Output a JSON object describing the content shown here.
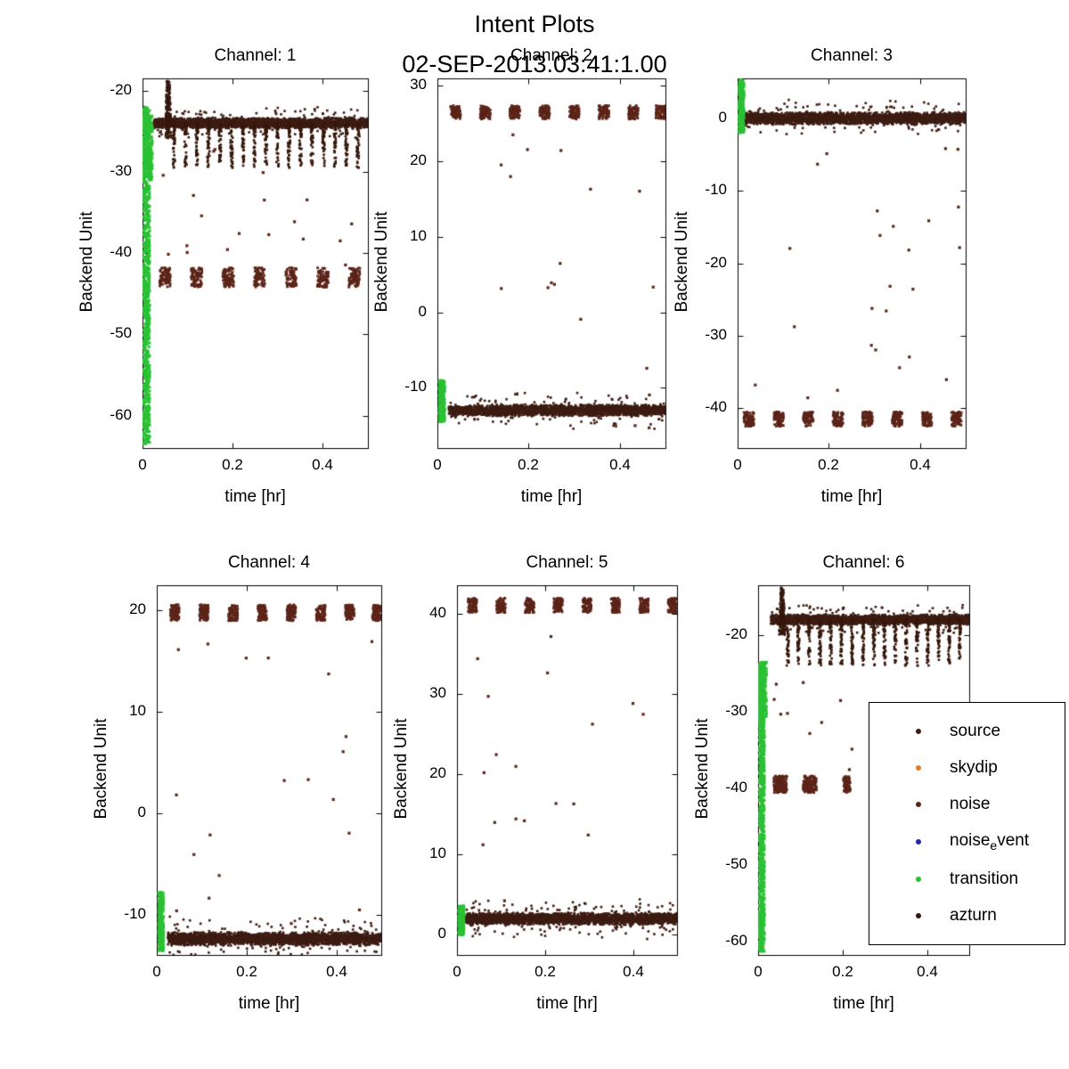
{
  "chart_data": {
    "type": "scatter",
    "title": "Intent Plots",
    "subtitle": "02-SEP-2013.03:41:1.00",
    "xlabel": "time [hr]",
    "ylabel": "Backend Unit",
    "xlim": [
      0,
      0.5
    ],
    "xticks": [
      0,
      0.2,
      0.4
    ],
    "xtick_labels": [
      "0",
      "0.2",
      "0.4"
    ],
    "grid": false,
    "legend": {
      "position": "lower-right, overlapping Channel 6",
      "entries": [
        {
          "label": "source",
          "color": "#3d1c12"
        },
        {
          "label": "skydip",
          "color": "#e07b26"
        },
        {
          "label": "noise",
          "color": "#5c2418"
        },
        {
          "label": "noise_event",
          "display": {
            "pre": "noise",
            "sub": "e",
            "post": "vent"
          },
          "color": "#2424b0"
        },
        {
          "label": "transition",
          "color": "#2bc135"
        },
        {
          "label": "azturn",
          "color": "#35170b"
        }
      ]
    },
    "subplots": [
      {
        "title": "Channel: 1",
        "ylim": [
          -64,
          -18.5
        ],
        "yticks": [
          -20,
          -30,
          -40,
          -50,
          -60
        ],
        "series": {
          "band": {
            "color_key": "source",
            "y": -24,
            "spread": 0.7,
            "x0": 0.025,
            "x1": 0.5,
            "n": 2600
          },
          "dips": {
            "color_key": "azturn",
            "to": -29.5,
            "start": 0.07,
            "step": 0.0255,
            "count": 17,
            "n": 42
          },
          "spike": {
            "color_key": "azturn",
            "x": 0.057,
            "halfwidth": 0.007,
            "y0": -26,
            "y1": -18.8,
            "n": 160
          },
          "clusters": {
            "color_key": "noise",
            "y": -43,
            "spread": 1.2,
            "halfwidth": 0.012,
            "n": 80,
            "positions": [
              0.05,
              0.12,
              0.19,
              0.26,
              0.33,
              0.4,
              0.47
            ]
          },
          "sparse": {
            "color_key": "noise",
            "n": 20,
            "x0": 0.03,
            "x1": 0.49,
            "y0": -42,
            "y1": -27
          },
          "transition": {
            "color_key": "transition",
            "x0": 0.002,
            "x1": 0.016,
            "y0": -63.5,
            "y1": -22,
            "n": 850,
            "blob": {
              "x0": 0.0,
              "x1": 0.022,
              "y0": -31,
              "y1": -23,
              "n": 260
            }
          }
        }
      },
      {
        "title": "Channel: 2",
        "ylim": [
          -18,
          31
        ],
        "yticks": [
          30,
          20,
          10,
          0,
          -10
        ],
        "series": {
          "band": {
            "color_key": "source",
            "y": -13,
            "spread": 0.8,
            "x0": 0.025,
            "x1": 0.5,
            "n": 2600
          },
          "clusters": {
            "color_key": "noise",
            "y": 26.5,
            "spread": 0.9,
            "halfwidth": 0.011,
            "n": 80,
            "positions": [
              0.04,
              0.105,
              0.17,
              0.235,
              0.3,
              0.365,
              0.43,
              0.49
            ]
          },
          "sparse": {
            "color_key": "noise",
            "n": 24,
            "x0": 0.02,
            "x1": 0.49,
            "y0": -17,
            "y1": 25
          },
          "transition": {
            "color_key": "transition",
            "x0": 0.004,
            "x1": 0.016,
            "y0": -14.5,
            "y1": -9,
            "n": 350
          }
        }
      },
      {
        "title": "Channel: 3",
        "ylim": [
          -45.5,
          5.5
        ],
        "yticks": [
          0,
          -10,
          -20,
          -30,
          -40
        ],
        "series": {
          "band": {
            "color_key": "source",
            "y": 0,
            "spread": 0.9,
            "x0": 0.015,
            "x1": 0.5,
            "n": 2600
          },
          "clusters": {
            "color_key": "noise",
            "y": -41.5,
            "spread": 1.0,
            "halfwidth": 0.011,
            "n": 80,
            "positions": [
              0.025,
              0.09,
              0.155,
              0.22,
              0.285,
              0.35,
              0.415,
              0.48
            ]
          },
          "sparse": {
            "color_key": "noise",
            "n": 25,
            "x0": 0.02,
            "x1": 0.49,
            "y0": -40,
            "y1": -3
          },
          "transition": {
            "color_key": "transition",
            "x0": 0.003,
            "x1": 0.014,
            "y0": -2,
            "y1": 5.3,
            "n": 350
          }
        }
      },
      {
        "title": "Channel: 4",
        "ylim": [
          -14,
          22.5
        ],
        "yticks": [
          20,
          10,
          0,
          -10
        ],
        "series": {
          "band": {
            "color_key": "source",
            "y": -12.4,
            "spread": 0.7,
            "x0": 0.025,
            "x1": 0.5,
            "n": 2600
          },
          "clusters": {
            "color_key": "noise",
            "y": 19.8,
            "spread": 0.8,
            "halfwidth": 0.01,
            "n": 80,
            "positions": [
              0.04,
              0.105,
              0.17,
              0.235,
              0.3,
              0.365,
              0.43,
              0.49
            ]
          },
          "sparse": {
            "color_key": "noise",
            "n": 20,
            "x0": 0.02,
            "x1": 0.49,
            "y0": -11,
            "y1": 18
          },
          "transition": {
            "color_key": "transition",
            "x0": 0.004,
            "x1": 0.015,
            "y0": -13.6,
            "y1": -7.8,
            "n": 350
          }
        }
      },
      {
        "title": "Channel: 5",
        "ylim": [
          -2.5,
          43.5
        ],
        "yticks": [
          40,
          30,
          20,
          10,
          0
        ],
        "series": {
          "band": {
            "color_key": "source",
            "y": 2,
            "spread": 0.8,
            "x0": 0.02,
            "x1": 0.5,
            "n": 2600
          },
          "clusters": {
            "color_key": "noise",
            "y": 41,
            "spread": 0.9,
            "halfwidth": 0.01,
            "n": 80,
            "positions": [
              0.035,
              0.1,
              0.165,
              0.23,
              0.295,
              0.36,
              0.425,
              0.49
            ]
          },
          "sparse": {
            "color_key": "noise",
            "n": 18,
            "x0": 0.02,
            "x1": 0.49,
            "y0": 4,
            "y1": 39
          },
          "transition": {
            "color_key": "transition",
            "x0": 0.004,
            "x1": 0.016,
            "y0": 0,
            "y1": 3.6,
            "n": 350
          }
        }
      },
      {
        "title": "Channel: 6",
        "ylim": [
          -61.8,
          -13.5
        ],
        "yticks": [
          -20,
          -30,
          -40,
          -50,
          -60
        ],
        "series": {
          "band": {
            "color_key": "source",
            "y": -18,
            "spread": 0.7,
            "x0": 0.03,
            "x1": 0.5,
            "n": 2600
          },
          "dips": {
            "color_key": "azturn",
            "to": -24,
            "start": 0.07,
            "step": 0.0255,
            "count": 17,
            "n": 42
          },
          "spike": {
            "color_key": "azturn",
            "x": 0.057,
            "halfwidth": 0.007,
            "y0": -20,
            "y1": -13.8,
            "n": 160
          },
          "clusters": {
            "color_key": "noise",
            "y": -39.5,
            "spread": 1.1,
            "halfwidth": 0.008,
            "n": 70,
            "positions": [
              0.045,
              0.06,
              0.115,
              0.13,
              0.21
            ]
          },
          "sparse": {
            "color_key": "noise",
            "n": 10,
            "x0": 0.035,
            "x1": 0.23,
            "y0": -38,
            "y1": -26
          },
          "transition": {
            "color_key": "transition",
            "x0": 0.002,
            "x1": 0.015,
            "y0": -61.5,
            "y1": -24,
            "n": 850,
            "blob": {
              "x0": 0.0,
              "x1": 0.02,
              "y0": -31,
              "y1": -23.5,
              "n": 260
            }
          }
        }
      }
    ]
  }
}
